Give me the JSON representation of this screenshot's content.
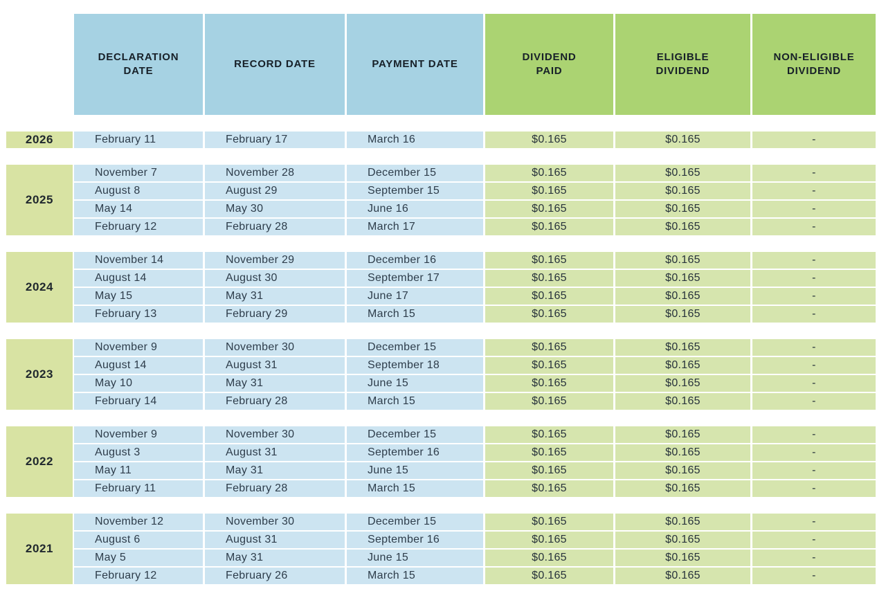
{
  "colors": {
    "header_blue": "#a6d2e3",
    "header_green": "#abd372",
    "year_cell": "#d8e3a3",
    "row_blue": "#cce4f1",
    "row_green": "#d6e5ae"
  },
  "chart_data": {
    "type": "table",
    "columns": [
      "Declaration Date",
      "Record Date",
      "Payment Date",
      "Dividend Paid",
      "Eligible Dividend",
      "Non-Eligible Dividend"
    ],
    "headers_display": [
      "DECLARATION\nDATE",
      "RECORD DATE",
      "PAYMENT DATE",
      "DIVIDEND\nPAID",
      "ELIGIBLE\nDIVIDEND",
      "NON-ELIGIBLE\nDIVIDEND"
    ],
    "sections": [
      {
        "year": "2026",
        "rows": [
          [
            "February 11",
            "February 17",
            "March 16",
            "$0.165",
            "$0.165",
            "-"
          ]
        ]
      },
      {
        "year": "2025",
        "rows": [
          [
            "November 7",
            "November 28",
            "December 15",
            "$0.165",
            "$0.165",
            "-"
          ],
          [
            "August 8",
            "August 29",
            "September 15",
            "$0.165",
            "$0.165",
            "-"
          ],
          [
            "May 14",
            "May 30",
            "June 16",
            "$0.165",
            "$0.165",
            "-"
          ],
          [
            "February 12",
            "February 28",
            "March 17",
            "$0.165",
            "$0.165",
            "-"
          ]
        ]
      },
      {
        "year": "2024",
        "rows": [
          [
            "November 14",
            "November 29",
            "December 16",
            "$0.165",
            "$0.165",
            "-"
          ],
          [
            "August 14",
            "August 30",
            "September 17",
            "$0.165",
            "$0.165",
            "-"
          ],
          [
            "May 15",
            "May 31",
            "June 17",
            "$0.165",
            "$0.165",
            "-"
          ],
          [
            "February 13",
            "February 29",
            "March 15",
            "$0.165",
            "$0.165",
            "-"
          ]
        ]
      },
      {
        "year": "2023",
        "rows": [
          [
            "November 9",
            "November 30",
            "December 15",
            "$0.165",
            "$0.165",
            "-"
          ],
          [
            "August 14",
            "August 31",
            "September 18",
            "$0.165",
            "$0.165",
            "-"
          ],
          [
            "May 10",
            "May 31",
            "June 15",
            "$0.165",
            "$0.165",
            "-"
          ],
          [
            "February 14",
            "February 28",
            "March 15",
            "$0.165",
            "$0.165",
            "-"
          ]
        ]
      },
      {
        "year": "2022",
        "rows": [
          [
            "November 9",
            "November 30",
            "December 15",
            "$0.165",
            "$0.165",
            "-"
          ],
          [
            "August 3",
            "August 31",
            "September 16",
            "$0.165",
            "$0.165",
            "-"
          ],
          [
            "May 11",
            "May 31",
            "June 15",
            "$0.165",
            "$0.165",
            "-"
          ],
          [
            "February 11",
            "February 28",
            "March 15",
            "$0.165",
            "$0.165",
            "-"
          ]
        ]
      },
      {
        "year": "2021",
        "rows": [
          [
            "November 12",
            "November 30",
            "December 15",
            "$0.165",
            "$0.165",
            "-"
          ],
          [
            "August 6",
            "August 31",
            "September 16",
            "$0.165",
            "$0.165",
            "-"
          ],
          [
            "May 5",
            "May 31",
            "June 15",
            "$0.165",
            "$0.165",
            "-"
          ],
          [
            "February 12",
            "February 26",
            "March 15",
            "$0.165",
            "$0.165",
            "-"
          ]
        ]
      }
    ]
  }
}
